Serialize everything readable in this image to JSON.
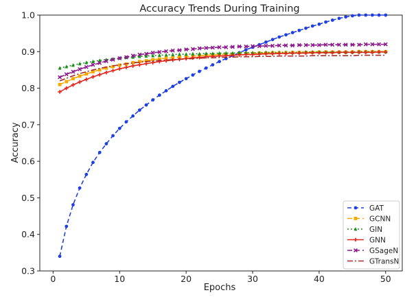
{
  "chart_data": {
    "type": "line",
    "title": "Accuracy Trends During Training",
    "xlabel": "Epochs",
    "ylabel": "Accuracy",
    "xlim": [
      -2,
      52.5
    ],
    "ylim": [
      0.3,
      1.0
    ],
    "x_ticks": [
      0,
      10,
      20,
      30,
      40,
      50
    ],
    "y_ticks": [
      0.3,
      0.4,
      0.5,
      0.6,
      0.7,
      0.8,
      0.9,
      1.0
    ],
    "grid": false,
    "legend_position": "lower-right",
    "x": [
      1,
      2,
      3,
      4,
      5,
      6,
      7,
      8,
      9,
      10,
      11,
      12,
      13,
      14,
      15,
      16,
      17,
      18,
      19,
      20,
      21,
      22,
      23,
      24,
      25,
      26,
      27,
      28,
      29,
      30,
      31,
      32,
      33,
      34,
      35,
      36,
      37,
      38,
      39,
      40,
      41,
      42,
      43,
      44,
      45,
      46,
      47,
      48,
      49,
      50
    ],
    "series": [
      {
        "name": "GAT",
        "color": "#1f3fe0",
        "dash": "6,4",
        "marker": "circle",
        "values": [
          0.34,
          0.422,
          0.481,
          0.527,
          0.564,
          0.597,
          0.624,
          0.648,
          0.67,
          0.69,
          0.708,
          0.724,
          0.74,
          0.754,
          0.768,
          0.781,
          0.793,
          0.805,
          0.816,
          0.826,
          0.836,
          0.846,
          0.855,
          0.864,
          0.873,
          0.881,
          0.889,
          0.897,
          0.905,
          0.912,
          0.919,
          0.926,
          0.933,
          0.94,
          0.946,
          0.952,
          0.958,
          0.964,
          0.97,
          0.975,
          0.981,
          0.986,
          0.991,
          0.995,
          0.998,
          1.0,
          1.0,
          1.0,
          1.0,
          1.0
        ]
      },
      {
        "name": "GCNN",
        "color": "#f5a800",
        "dash": "7,4",
        "marker": "square",
        "values": [
          0.81,
          0.818,
          0.826,
          0.833,
          0.839,
          0.845,
          0.85,
          0.855,
          0.859,
          0.863,
          0.866,
          0.87,
          0.873,
          0.875,
          0.878,
          0.88,
          0.882,
          0.883,
          0.885,
          0.886,
          0.888,
          0.889,
          0.89,
          0.891,
          0.892,
          0.893,
          0.893,
          0.894,
          0.895,
          0.895,
          0.896,
          0.896,
          0.897,
          0.897,
          0.897,
          0.898,
          0.898,
          0.898,
          0.898,
          0.899,
          0.899,
          0.899,
          0.899,
          0.899,
          0.899,
          0.9,
          0.9,
          0.9,
          0.9,
          0.9
        ]
      },
      {
        "name": "GIN",
        "color": "#1a8f1a",
        "dash": "2,3",
        "marker": "triangle",
        "values": [
          0.855,
          0.859,
          0.863,
          0.867,
          0.87,
          0.873,
          0.876,
          0.878,
          0.88,
          0.882,
          0.884,
          0.885,
          0.887,
          0.888,
          0.889,
          0.89,
          0.891,
          0.892,
          0.893,
          0.893,
          0.894,
          0.894,
          0.895,
          0.895,
          0.896,
          0.896,
          0.896,
          0.897,
          0.897,
          0.897,
          0.897,
          0.898,
          0.898,
          0.898,
          0.898,
          0.898,
          0.898,
          0.899,
          0.899,
          0.899,
          0.899,
          0.899,
          0.899,
          0.899,
          0.899,
          0.9,
          0.9,
          0.9,
          0.9,
          0.9
        ]
      },
      {
        "name": "GNN",
        "color": "#e5261f",
        "dash": "",
        "marker": "plus",
        "values": [
          0.79,
          0.8,
          0.809,
          0.817,
          0.824,
          0.831,
          0.837,
          0.843,
          0.848,
          0.853,
          0.857,
          0.861,
          0.864,
          0.867,
          0.87,
          0.873,
          0.875,
          0.877,
          0.879,
          0.881,
          0.883,
          0.884,
          0.886,
          0.887,
          0.888,
          0.889,
          0.89,
          0.891,
          0.892,
          0.892,
          0.893,
          0.894,
          0.894,
          0.895,
          0.895,
          0.896,
          0.896,
          0.896,
          0.897,
          0.897,
          0.897,
          0.897,
          0.898,
          0.898,
          0.898,
          0.898,
          0.898,
          0.898,
          0.899,
          0.899
        ]
      },
      {
        "name": "GSageN",
        "color": "#8b1a8b",
        "dash": "7,4",
        "marker": "x",
        "values": [
          0.83,
          0.838,
          0.845,
          0.852,
          0.858,
          0.864,
          0.869,
          0.874,
          0.878,
          0.882,
          0.885,
          0.889,
          0.892,
          0.894,
          0.897,
          0.899,
          0.901,
          0.903,
          0.904,
          0.906,
          0.907,
          0.909,
          0.91,
          0.911,
          0.912,
          0.912,
          0.913,
          0.914,
          0.914,
          0.915,
          0.915,
          0.916,
          0.916,
          0.917,
          0.917,
          0.917,
          0.918,
          0.918,
          0.918,
          0.918,
          0.919,
          0.919,
          0.919,
          0.919,
          0.919,
          0.919,
          0.92,
          0.92,
          0.92,
          0.92
        ]
      },
      {
        "name": "GTransN",
        "color": "#a52a2a",
        "dash": "8,3,2,3",
        "marker": "none",
        "values": [
          0.82,
          0.827,
          0.834,
          0.84,
          0.845,
          0.85,
          0.854,
          0.858,
          0.861,
          0.864,
          0.867,
          0.869,
          0.871,
          0.873,
          0.874,
          0.876,
          0.877,
          0.878,
          0.879,
          0.88,
          0.881,
          0.882,
          0.883,
          0.883,
          0.884,
          0.885,
          0.885,
          0.886,
          0.886,
          0.886,
          0.887,
          0.887,
          0.887,
          0.888,
          0.888,
          0.888,
          0.888,
          0.888,
          0.889,
          0.889,
          0.889,
          0.889,
          0.889,
          0.889,
          0.889,
          0.89,
          0.89,
          0.89,
          0.89,
          0.89
        ]
      }
    ]
  }
}
